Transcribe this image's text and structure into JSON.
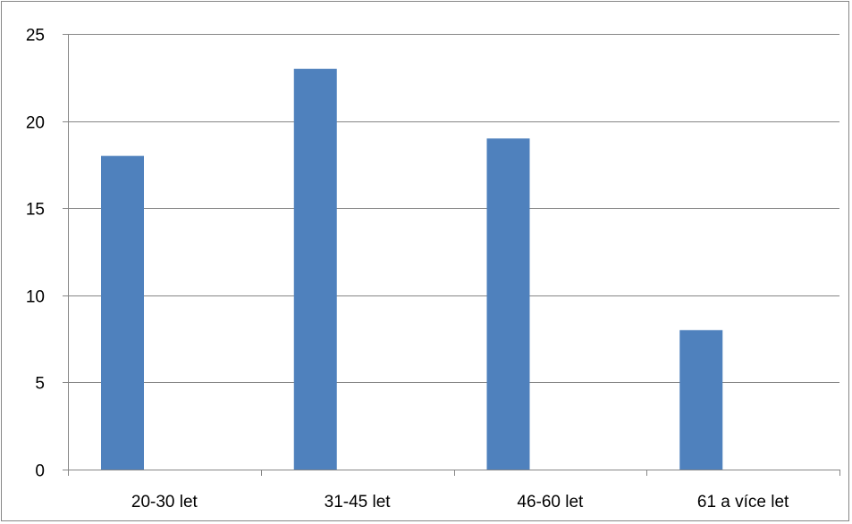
{
  "chart_data": {
    "type": "bar",
    "categories": [
      "20-30 let",
      "31-45 let",
      "46-60 let",
      "61 a více let"
    ],
    "values": [
      18,
      23,
      19,
      8
    ],
    "title": "",
    "xlabel": "",
    "ylabel": "",
    "ylim": [
      0,
      25
    ],
    "yticks": [
      0,
      5,
      10,
      15,
      20,
      25
    ],
    "grid": true,
    "legend": "none",
    "bar_color": "#4f81bd",
    "grid_color": "#868686"
  }
}
